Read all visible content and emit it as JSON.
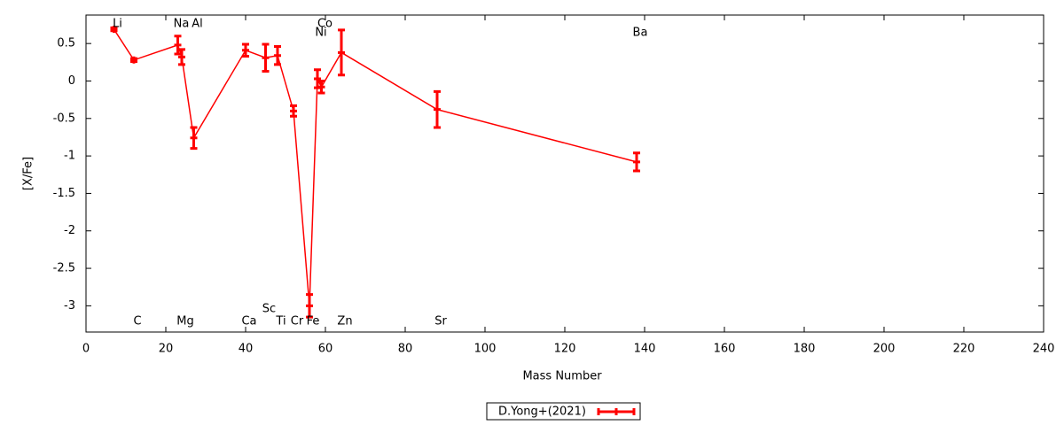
{
  "chart_data": {
    "type": "errorbar-line",
    "xlabel": "Mass Number",
    "ylabel": "[X/Fe]",
    "xlim": [
      0,
      240
    ],
    "xticks": [
      0,
      20,
      40,
      60,
      80,
      100,
      120,
      140,
      160,
      180,
      200,
      220,
      240
    ],
    "ylim": [
      -3.35,
      0.88
    ],
    "yticks": [
      0.5,
      0,
      -0.5,
      -1,
      -1.5,
      -2,
      -2.5,
      -3
    ],
    "labels": [
      "Li",
      "C",
      "Na",
      "Mg",
      "Al",
      "Ca",
      "Sc",
      "Ti",
      "Cr",
      "Fe",
      "Ni",
      "Co",
      "Zn",
      "Sr",
      "Ba"
    ],
    "legend": "bottom",
    "series": [
      {
        "name": "D.Yong+(2021)",
        "color": "#ff0000",
        "x": [
          7,
          12,
          23,
          24,
          27,
          40,
          45,
          48,
          52,
          56,
          58,
          59,
          64,
          88,
          138
        ],
        "values": [
          0.69,
          0.28,
          0.48,
          0.32,
          -0.76,
          0.41,
          0.31,
          0.34,
          -0.4,
          -3.0,
          0.03,
          -0.08,
          0.38,
          -0.38,
          -1.08
        ],
        "errors": [
          0.02,
          0.02,
          0.12,
          0.1,
          0.14,
          0.08,
          0.18,
          0.12,
          0.07,
          0.15,
          0.12,
          0.08,
          0.3,
          0.24,
          0.12
        ]
      }
    ]
  }
}
